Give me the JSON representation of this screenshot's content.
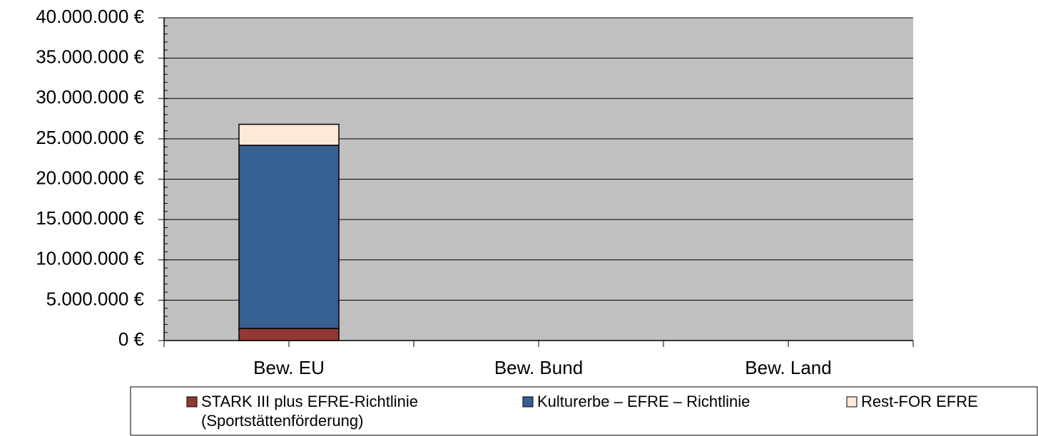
{
  "chart_data": {
    "type": "bar",
    "stacked": true,
    "categories": [
      "Bew. EU",
      "Bew. Bund",
      "Bew. Land"
    ],
    "series": [
      {
        "name": "STARK III plus EFRE-Richtlinie (Sportstättenförderung)",
        "color": "#953735",
        "values": [
          1500000,
          null,
          null
        ]
      },
      {
        "name": "Kulturerbe – EFRE – Richtlinie",
        "color": "#376092",
        "values": [
          22700000,
          null,
          null
        ]
      },
      {
        "name": "Rest-FOR EFRE",
        "color": "#fde9d9",
        "values": [
          2600000,
          null,
          null
        ]
      }
    ],
    "ylim": [
      0,
      40000000
    ],
    "yticks": [
      {
        "value": 0,
        "label": "0 €"
      },
      {
        "value": 5000000,
        "label": "5.000.000 €"
      },
      {
        "value": 10000000,
        "label": "10.000.000 €"
      },
      {
        "value": 15000000,
        "label": "15.000.000 €"
      },
      {
        "value": 20000000,
        "label": "20.000.000 €"
      },
      {
        "value": 25000000,
        "label": "25.000.000 €"
      },
      {
        "value": 30000000,
        "label": "30.000.000 €"
      },
      {
        "value": 35000000,
        "label": "35.000.000 €"
      },
      {
        "value": 40000000,
        "label": "40.000.000 €"
      }
    ],
    "grid": true,
    "plot_background": "#c0c0c0",
    "legend": "bottom"
  }
}
